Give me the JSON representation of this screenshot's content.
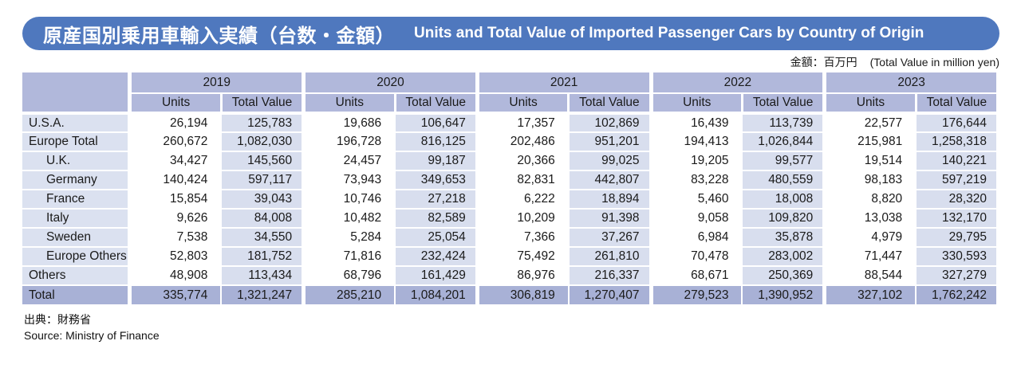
{
  "title": {
    "ja": "原産国別乗用車輸入実績（台数・金額）",
    "en": "Units and Total Value of Imported Passenger Cars by Country of Origin"
  },
  "unit_note": {
    "ja": "金額：百万円",
    "en": "(Total Value in million yen)"
  },
  "source": {
    "ja": "出典：財務省",
    "en": "Source: Ministry of Finance"
  },
  "colors": {
    "title_bar": "#4F78BE",
    "header_cell": "#B1B8DB",
    "label_cell": "#DBE1F0",
    "value_cell": "#D8DEEE",
    "total_row": "#A8B1D6",
    "units_cell": "#FFFFFF"
  },
  "chart_data": {
    "type": "table",
    "title": "Units and Total Value of Imported Passenger Cars by Country of Origin",
    "years": [
      "2019",
      "2020",
      "2021",
      "2022",
      "2023"
    ],
    "column_headers": [
      "Units",
      "Total Value"
    ],
    "rows": [
      {
        "label": "U.S.A.",
        "indent": false,
        "total": false,
        "cells": [
          "26,194",
          "125,783",
          "19,686",
          "106,647",
          "17,357",
          "102,869",
          "16,439",
          "113,739",
          "22,577",
          "176,644"
        ]
      },
      {
        "label": "Europe Total",
        "indent": false,
        "total": false,
        "cells": [
          "260,672",
          "1,082,030",
          "196,728",
          "816,125",
          "202,486",
          "951,201",
          "194,413",
          "1,026,844",
          "215,981",
          "1,258,318"
        ]
      },
      {
        "label": "U.K.",
        "indent": true,
        "total": false,
        "cells": [
          "34,427",
          "145,560",
          "24,457",
          "99,187",
          "20,366",
          "99,025",
          "19,205",
          "99,577",
          "19,514",
          "140,221"
        ]
      },
      {
        "label": "Germany",
        "indent": true,
        "total": false,
        "cells": [
          "140,424",
          "597,117",
          "73,943",
          "349,653",
          "82,831",
          "442,807",
          "83,228",
          "480,559",
          "98,183",
          "597,219"
        ]
      },
      {
        "label": "France",
        "indent": true,
        "total": false,
        "cells": [
          "15,854",
          "39,043",
          "10,746",
          "27,218",
          "6,222",
          "18,894",
          "5,460",
          "18,008",
          "8,820",
          "28,320"
        ]
      },
      {
        "label": "Italy",
        "indent": true,
        "total": false,
        "cells": [
          "9,626",
          "84,008",
          "10,482",
          "82,589",
          "10,209",
          "91,398",
          "9,058",
          "109,820",
          "13,038",
          "132,170"
        ]
      },
      {
        "label": "Sweden",
        "indent": true,
        "total": false,
        "cells": [
          "7,538",
          "34,550",
          "5,284",
          "25,054",
          "7,366",
          "37,267",
          "6,984",
          "35,878",
          "4,979",
          "29,795"
        ]
      },
      {
        "label": "Europe Others",
        "indent": true,
        "total": false,
        "cells": [
          "52,803",
          "181,752",
          "71,816",
          "232,424",
          "75,492",
          "261,810",
          "70,478",
          "283,002",
          "71,447",
          "330,593"
        ]
      },
      {
        "label": "Others",
        "indent": false,
        "total": false,
        "cells": [
          "48,908",
          "113,434",
          "68,796",
          "161,429",
          "86,976",
          "216,337",
          "68,671",
          "250,369",
          "88,544",
          "327,279"
        ]
      },
      {
        "label": "Total",
        "indent": false,
        "total": true,
        "cells": [
          "335,774",
          "1,321,247",
          "285,210",
          "1,084,201",
          "306,819",
          "1,270,407",
          "279,523",
          "1,390,952",
          "327,102",
          "1,762,242"
        ]
      }
    ]
  }
}
